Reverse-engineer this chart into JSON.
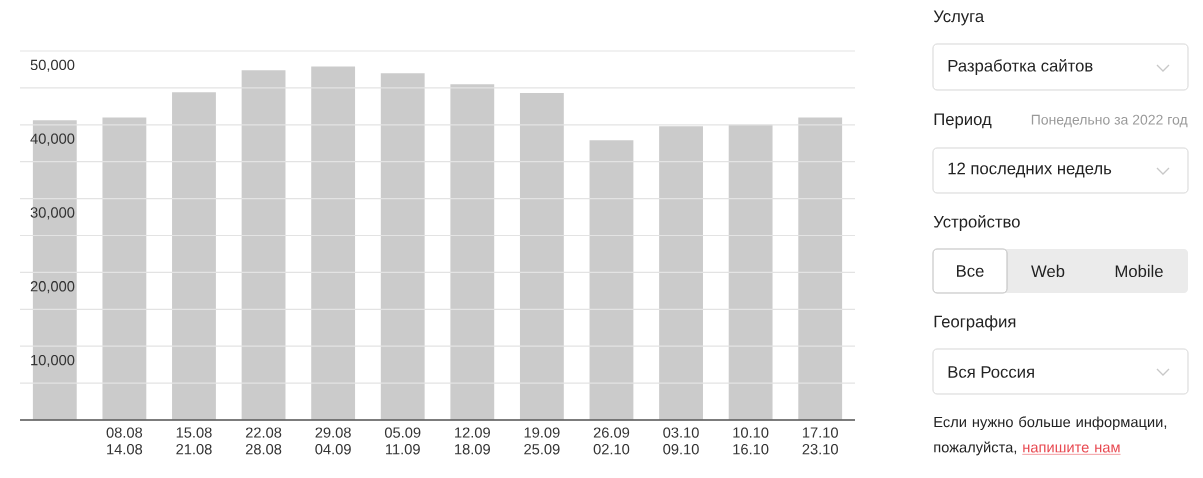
{
  "chart_data": [
    {
      "type": "bar",
      "categories": [
        null,
        "08.08 14.08",
        "15.08 21.08",
        "22.08 28.08",
        "29.08 04.09",
        "05.09 11.09",
        "12.09 18.09",
        "19.09 25.09",
        "26.09 02.10",
        "03.10 09.10",
        "10.10 16.10",
        "17.10 23.10"
      ],
      "values": [
        40600,
        41000,
        44400,
        47400,
        47900,
        47000,
        45500,
        44300,
        37900,
        39800,
        40000,
        41000
      ],
      "color": "#cbcbcb",
      "ylim": [
        0,
        50000
      ],
      "yticks": [
        {
          "value": 0,
          "label": null
        },
        {
          "value": 5000,
          "label": null
        },
        {
          "value": 10000,
          "label": "10,000"
        },
        {
          "value": 15000,
          "label": null
        },
        {
          "value": 20000,
          "label": "20,000"
        },
        {
          "value": 25000,
          "label": null
        },
        {
          "value": 30000,
          "label": "30,000"
        },
        {
          "value": 35000,
          "label": null
        },
        {
          "value": 40000,
          "label": "40,000"
        },
        {
          "value": 45000,
          "label": null
        },
        {
          "value": 50000,
          "label": "50,000"
        }
      ],
      "grid": "y"
    },
    {
      "type": "other",
      "annotations": [
        "Услуга",
        "Разработка сайтов",
        "Период",
        "Понедельно за 2022 год",
        "12 последних недель",
        "Устройство",
        "Все",
        "Web",
        "Mobile",
        "География",
        "Вся Россия",
        "Если нужно больше информации, пожалуйста,",
        "напишите нам"
      ]
    }
  ]
}
